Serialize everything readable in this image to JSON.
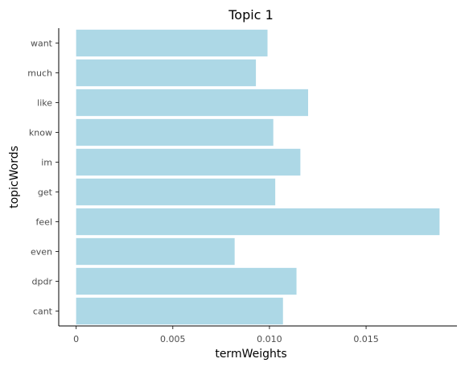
{
  "chart_data": {
    "type": "bar",
    "orientation": "horizontal",
    "title": "Topic 1",
    "xlabel": "termWeights",
    "ylabel": "topicWords",
    "categories": [
      "want",
      "much",
      "like",
      "know",
      "im",
      "get",
      "feel",
      "even",
      "dpdr",
      "cant"
    ],
    "values": [
      0.0099,
      0.0093,
      0.012,
      0.0102,
      0.0116,
      0.0103,
      0.0188,
      0.0082,
      0.0114,
      0.0107
    ],
    "xlim": [
      -0.0009,
      0.0197
    ],
    "xticks": [
      0,
      0.005,
      0.01,
      0.015
    ],
    "xtick_labels": [
      "0",
      "0.005",
      "0.010",
      "0.015"
    ],
    "bar_color": "#add8e6",
    "grid": false,
    "legend": "none"
  }
}
